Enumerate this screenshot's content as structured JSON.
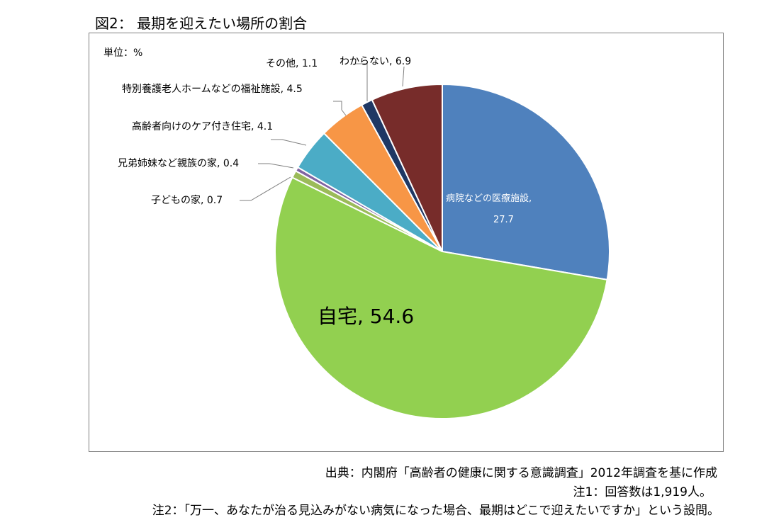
{
  "chart_data": {
    "type": "pie",
    "title": "図2： 最期を迎えたい場所の割合",
    "unit_label": "単位：%",
    "slices": [
      {
        "label": "病院などの医療施設",
        "value": 27.7,
        "color": "#4f81bd"
      },
      {
        "label": "自宅",
        "value": 54.6,
        "color": "#92d050"
      },
      {
        "label": "子どもの家",
        "value": 0.7,
        "color": "#9bbb59"
      },
      {
        "label": "兄弟姉妹など親族の家",
        "value": 0.4,
        "color": "#8064a2"
      },
      {
        "label": "高齢者向けのケア付き住宅",
        "value": 4.1,
        "color": "#4bacc6"
      },
      {
        "label": "特別養護老人ホームなどの福祉施設",
        "value": 4.5,
        "color": "#f79646"
      },
      {
        "label": "その他",
        "value": 1.1,
        "color": "#1f3864"
      },
      {
        "label": "わからない",
        "value": 6.9,
        "color": "#772c2a"
      }
    ],
    "data_labels": [
      "病院などの医療施設,",
      "27.7",
      "自宅, 54.6",
      "子どもの家, 0.7",
      "兄弟姉妹など親族の家, 0.4",
      "高齢者向けのケア付き住宅, 4.1",
      "特別養護老人ホームなどの福祉施設, 4.5",
      "その他, 1.1",
      "わからない, 6.9"
    ]
  },
  "notes": {
    "source": "出典：内閣府「高齢者の健康に関する意識調査」2012年調査を基に作成",
    "note1": "注1：回答数は1,919人。",
    "note2": "注2：「万一、あなたが治る見込みがない病気になった場合、最期はどこで迎えたいですか」という設問。"
  }
}
